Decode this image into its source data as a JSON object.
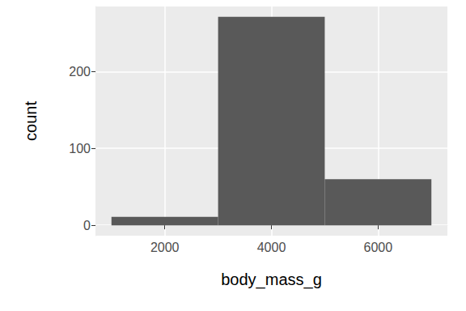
{
  "chart_data": {
    "type": "histogram",
    "xlabel": "body_mass_g",
    "ylabel": "count",
    "bins": [
      1000,
      3000,
      5000,
      7000
    ],
    "counts": [
      11,
      271,
      60
    ],
    "color": "#595959",
    "xlim": [
      700,
      7300
    ],
    "xticks": [
      2000,
      4000,
      6000
    ],
    "ylim": [
      -13.55,
      284.55
    ],
    "yticks": [
      0,
      100,
      200
    ],
    "grid": true
  }
}
